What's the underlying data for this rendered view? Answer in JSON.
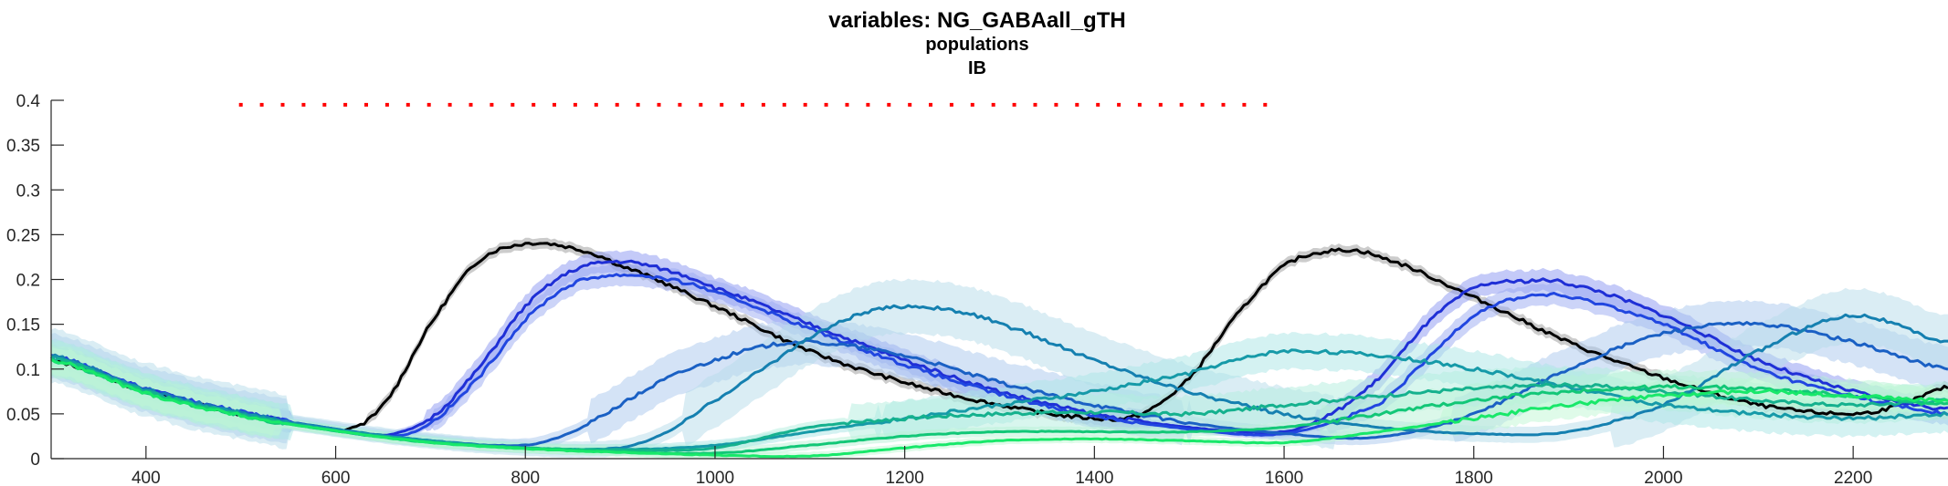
{
  "chart_data": {
    "type": "line",
    "title": "variables: NG_GABAall_gTH",
    "subtitle": "populations",
    "subsubtitle": "IB",
    "xlabel": "",
    "ylabel": "",
    "xlim": [
      300,
      2300
    ],
    "ylim": [
      0,
      0.4
    ],
    "xticks": [
      400,
      600,
      800,
      1000,
      1200,
      1400,
      1600,
      1800,
      2000,
      2200
    ],
    "yticks": [
      0,
      0.05,
      0.1,
      0.15,
      0.2,
      0.25,
      0.3,
      0.35,
      0.4
    ],
    "ytick_labels": [
      "0",
      "0.05",
      "0.1",
      "0.15",
      "0.2",
      "0.25",
      "0.3",
      "0.35",
      "0.4"
    ],
    "grid": false,
    "legend": "none",
    "stimulus_marker": {
      "x_start": 500,
      "x_end": 1580,
      "y": 0.395,
      "color": "#ff0000",
      "style": "dotted"
    },
    "series": [
      {
        "color": "#000000",
        "band_color": "#9a9a9a",
        "band": 0.006,
        "x": [
          300,
          400,
          500,
          600,
          610,
          650,
          700,
          750,
          800,
          850,
          900,
          1000,
          1100,
          1200,
          1300,
          1400,
          1450,
          1500,
          1550,
          1600,
          1650,
          1700,
          1800,
          1900,
          2000,
          2100,
          2200,
          2250,
          2300
        ],
        "y": [
          0.11,
          0.075,
          0.05,
          0.033,
          0.032,
          0.06,
          0.15,
          0.22,
          0.24,
          0.235,
          0.215,
          0.17,
          0.12,
          0.085,
          0.06,
          0.045,
          0.05,
          0.09,
          0.16,
          0.215,
          0.232,
          0.225,
          0.18,
          0.13,
          0.09,
          0.06,
          0.05,
          0.06,
          0.08
        ]
      },
      {
        "color": "#1f2fd6",
        "band_color": "#8a96f2",
        "band": 0.012,
        "x": [
          300,
          400,
          500,
          600,
          650,
          700,
          750,
          800,
          850,
          900,
          950,
          1000,
          1100,
          1200,
          1300,
          1400,
          1500,
          1600,
          1650,
          1700,
          1750,
          1800,
          1850,
          1900,
          2000,
          2100,
          2200,
          2300
        ],
        "y": [
          0.115,
          0.078,
          0.052,
          0.033,
          0.026,
          0.045,
          0.1,
          0.17,
          0.21,
          0.22,
          0.21,
          0.19,
          0.15,
          0.11,
          0.075,
          0.05,
          0.035,
          0.03,
          0.05,
          0.09,
          0.15,
          0.19,
          0.198,
          0.195,
          0.16,
          0.11,
          0.075,
          0.055
        ]
      },
      {
        "color": "#2146e0",
        "band_color": "#9aaaf2",
        "band": 0.012,
        "x": [
          300,
          400,
          500,
          600,
          660,
          700,
          750,
          800,
          850,
          900,
          950,
          1000,
          1100,
          1200,
          1300,
          1400,
          1500,
          1600,
          1700,
          1750,
          1800,
          1850,
          1900,
          2000,
          2100,
          2200,
          2300
        ],
        "y": [
          0.115,
          0.078,
          0.052,
          0.033,
          0.025,
          0.04,
          0.09,
          0.155,
          0.195,
          0.205,
          0.2,
          0.185,
          0.145,
          0.105,
          0.072,
          0.048,
          0.033,
          0.028,
          0.06,
          0.11,
          0.16,
          0.18,
          0.18,
          0.15,
          0.1,
          0.07,
          0.05
        ]
      },
      {
        "color": "#1a60c4",
        "band_color": "#a9c7ee",
        "band": 0.025,
        "x": [
          300,
          400,
          500,
          600,
          700,
          800,
          850,
          900,
          950,
          1000,
          1050,
          1100,
          1200,
          1300,
          1400,
          1500,
          1600,
          1700,
          1800,
          1900,
          2000,
          2100,
          2200,
          2300
        ],
        "y": [
          0.115,
          0.077,
          0.051,
          0.033,
          0.02,
          0.015,
          0.03,
          0.06,
          0.09,
          0.11,
          0.125,
          0.13,
          0.115,
          0.085,
          0.06,
          0.04,
          0.028,
          0.024,
          0.05,
          0.1,
          0.14,
          0.15,
          0.13,
          0.1
        ]
      },
      {
        "color": "#1580b0",
        "band_color": "#b5dcea",
        "band": 0.03,
        "x": [
          300,
          400,
          500,
          600,
          700,
          800,
          900,
          950,
          1000,
          1050,
          1100,
          1150,
          1200,
          1250,
          1300,
          1400,
          1500,
          1600,
          1700,
          1800,
          1900,
          2000,
          2100,
          2200,
          2300
        ],
        "y": [
          0.115,
          0.077,
          0.051,
          0.033,
          0.02,
          0.012,
          0.012,
          0.03,
          0.065,
          0.1,
          0.135,
          0.16,
          0.17,
          0.165,
          0.15,
          0.11,
          0.075,
          0.05,
          0.035,
          0.028,
          0.03,
          0.06,
          0.12,
          0.16,
          0.13
        ]
      },
      {
        "color": "#169aa8",
        "band_color": "#a9e6e6",
        "band": 0.02,
        "x": [
          300,
          400,
          500,
          600,
          700,
          800,
          900,
          1000,
          1100,
          1200,
          1300,
          1400,
          1500,
          1550,
          1600,
          1700,
          1800,
          1900,
          2000,
          2100,
          2200,
          2300
        ],
        "y": [
          0.113,
          0.076,
          0.05,
          0.032,
          0.02,
          0.012,
          0.01,
          0.015,
          0.03,
          0.045,
          0.06,
          0.075,
          0.095,
          0.11,
          0.12,
          0.115,
          0.1,
          0.08,
          0.06,
          0.05,
          0.045,
          0.05
        ]
      },
      {
        "color": "#15b18e",
        "band_color": "#b2eedd",
        "band": 0.02,
        "x": [
          300,
          400,
          500,
          600,
          700,
          800,
          900,
          1000,
          1100,
          1200,
          1300,
          1400,
          1500,
          1600,
          1700,
          1800,
          1900,
          2000,
          2100,
          2200,
          2300
        ],
        "y": [
          0.112,
          0.075,
          0.049,
          0.031,
          0.019,
          0.012,
          0.01,
          0.012,
          0.035,
          0.045,
          0.05,
          0.052,
          0.05,
          0.06,
          0.07,
          0.078,
          0.082,
          0.075,
          0.065,
          0.06,
          0.065
        ]
      },
      {
        "color": "#12c777",
        "band_color": "#b8f2d6",
        "band": 0.018,
        "x": [
          300,
          400,
          500,
          600,
          700,
          800,
          900,
          1000,
          1100,
          1200,
          1300,
          1400,
          1500,
          1600,
          1700,
          1800,
          1900,
          2000,
          2100,
          2200,
          2300
        ],
        "y": [
          0.11,
          0.074,
          0.048,
          0.031,
          0.018,
          0.012,
          0.008,
          0.006,
          0.015,
          0.025,
          0.03,
          0.03,
          0.03,
          0.035,
          0.05,
          0.065,
          0.075,
          0.08,
          0.078,
          0.07,
          0.06
        ]
      },
      {
        "color": "#18e86a",
        "band_color": "#bff7d4",
        "band": 0.015,
        "x": [
          300,
          400,
          500,
          600,
          700,
          800,
          900,
          1000,
          1100,
          1200,
          1300,
          1400,
          1500,
          1600,
          1700,
          1800,
          1900,
          2000,
          2100,
          2200,
          2300
        ],
        "y": [
          0.11,
          0.073,
          0.048,
          0.031,
          0.018,
          0.011,
          0.007,
          0.004,
          0.003,
          0.012,
          0.02,
          0.022,
          0.02,
          0.018,
          0.03,
          0.045,
          0.06,
          0.07,
          0.075,
          0.07,
          0.065
        ]
      }
    ]
  }
}
